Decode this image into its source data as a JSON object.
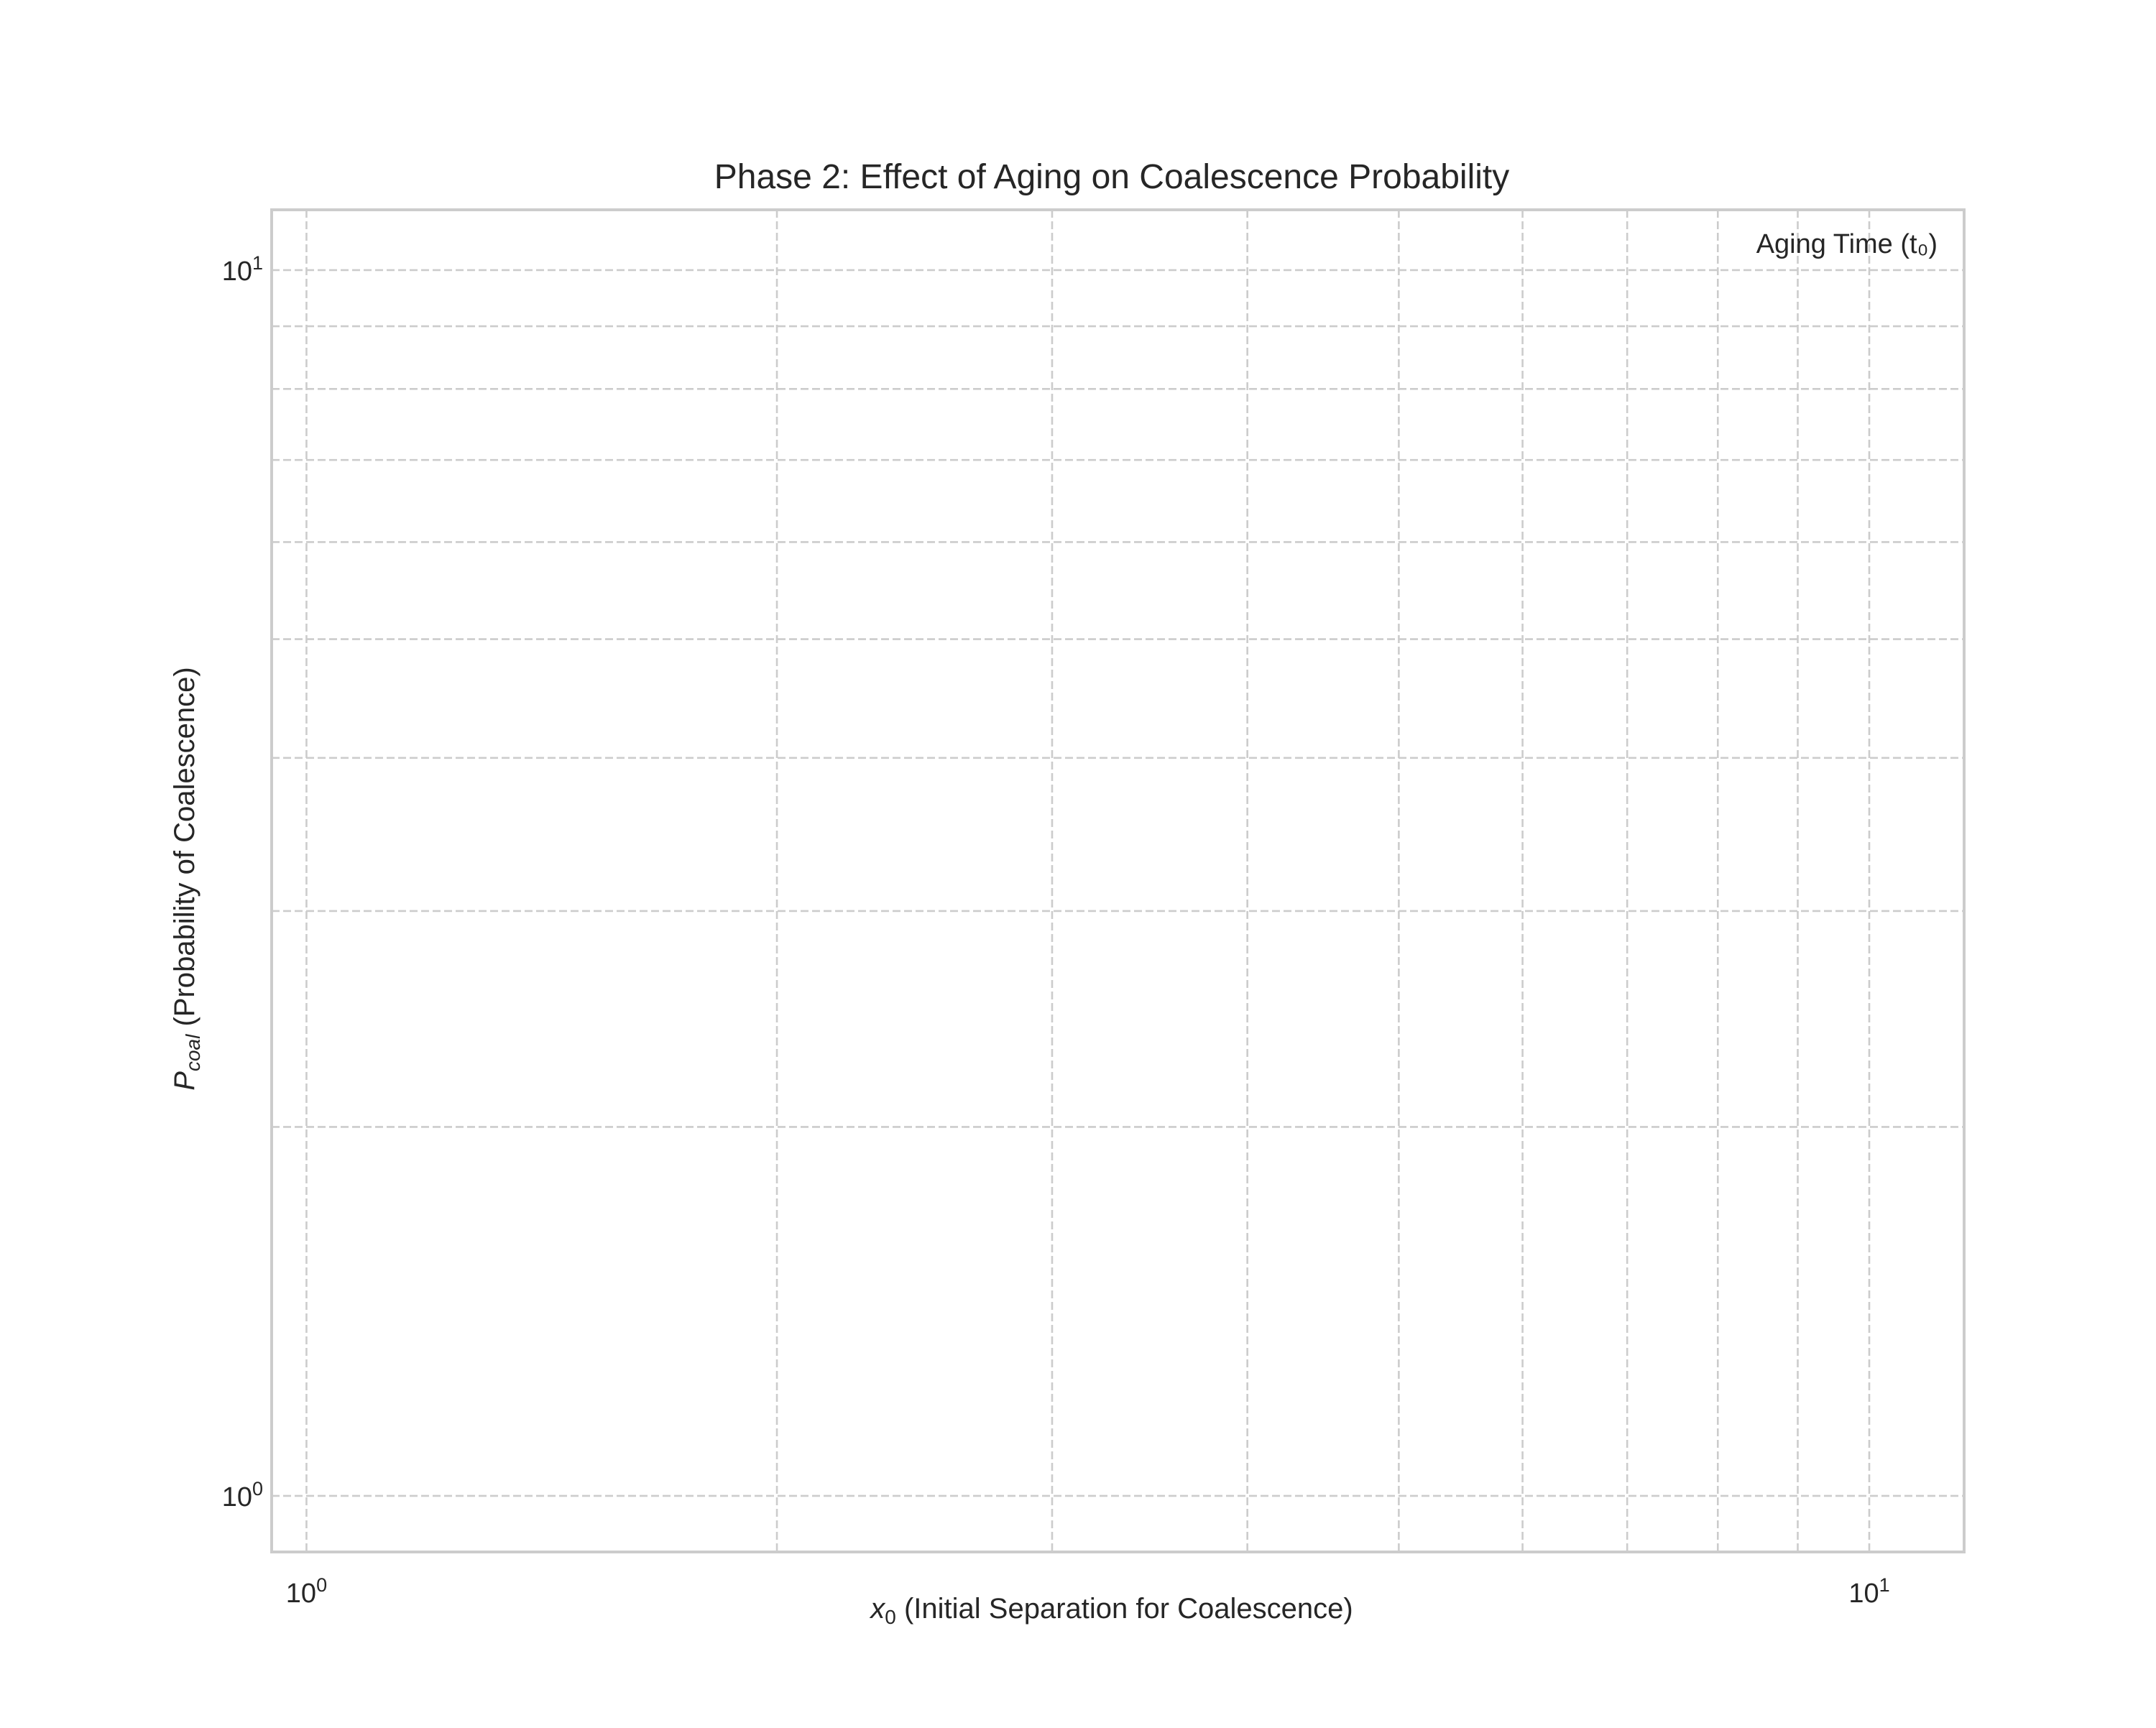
{
  "chart_data": {
    "type": "line",
    "title": "Phase 2: Effect of Aging on Coalescence Probability",
    "xlabel": {
      "symbol": "x",
      "subscript": "0",
      "text": " (Initial Separation for Coalescence)"
    },
    "ylabel": {
      "symbol": "P",
      "subscript": "coal",
      "text": " (Probability of Coalescence)"
    },
    "xscale": "log",
    "yscale": "log",
    "xlim": [
      0.95,
      11.5
    ],
    "ylim": [
      0.9,
      11.2
    ],
    "x_ticks": [
      {
        "value": 1,
        "base": "10",
        "exp": "0"
      },
      {
        "value": 10,
        "base": "10",
        "exp": "1"
      }
    ],
    "y_ticks": [
      {
        "value": 1,
        "base": "10",
        "exp": "0"
      },
      {
        "value": 10,
        "base": "10",
        "exp": "1"
      }
    ],
    "x_minor_ticks": [
      1,
      2,
      3,
      4,
      5,
      6,
      7,
      8,
      9,
      10
    ],
    "y_minor_ticks": [
      0.9,
      1,
      2,
      3,
      4,
      5,
      6,
      7,
      8,
      9,
      10
    ],
    "grid": true,
    "legend": {
      "title": "Aging Time (t₀)",
      "placement": "top-right",
      "entries": []
    },
    "series": []
  }
}
